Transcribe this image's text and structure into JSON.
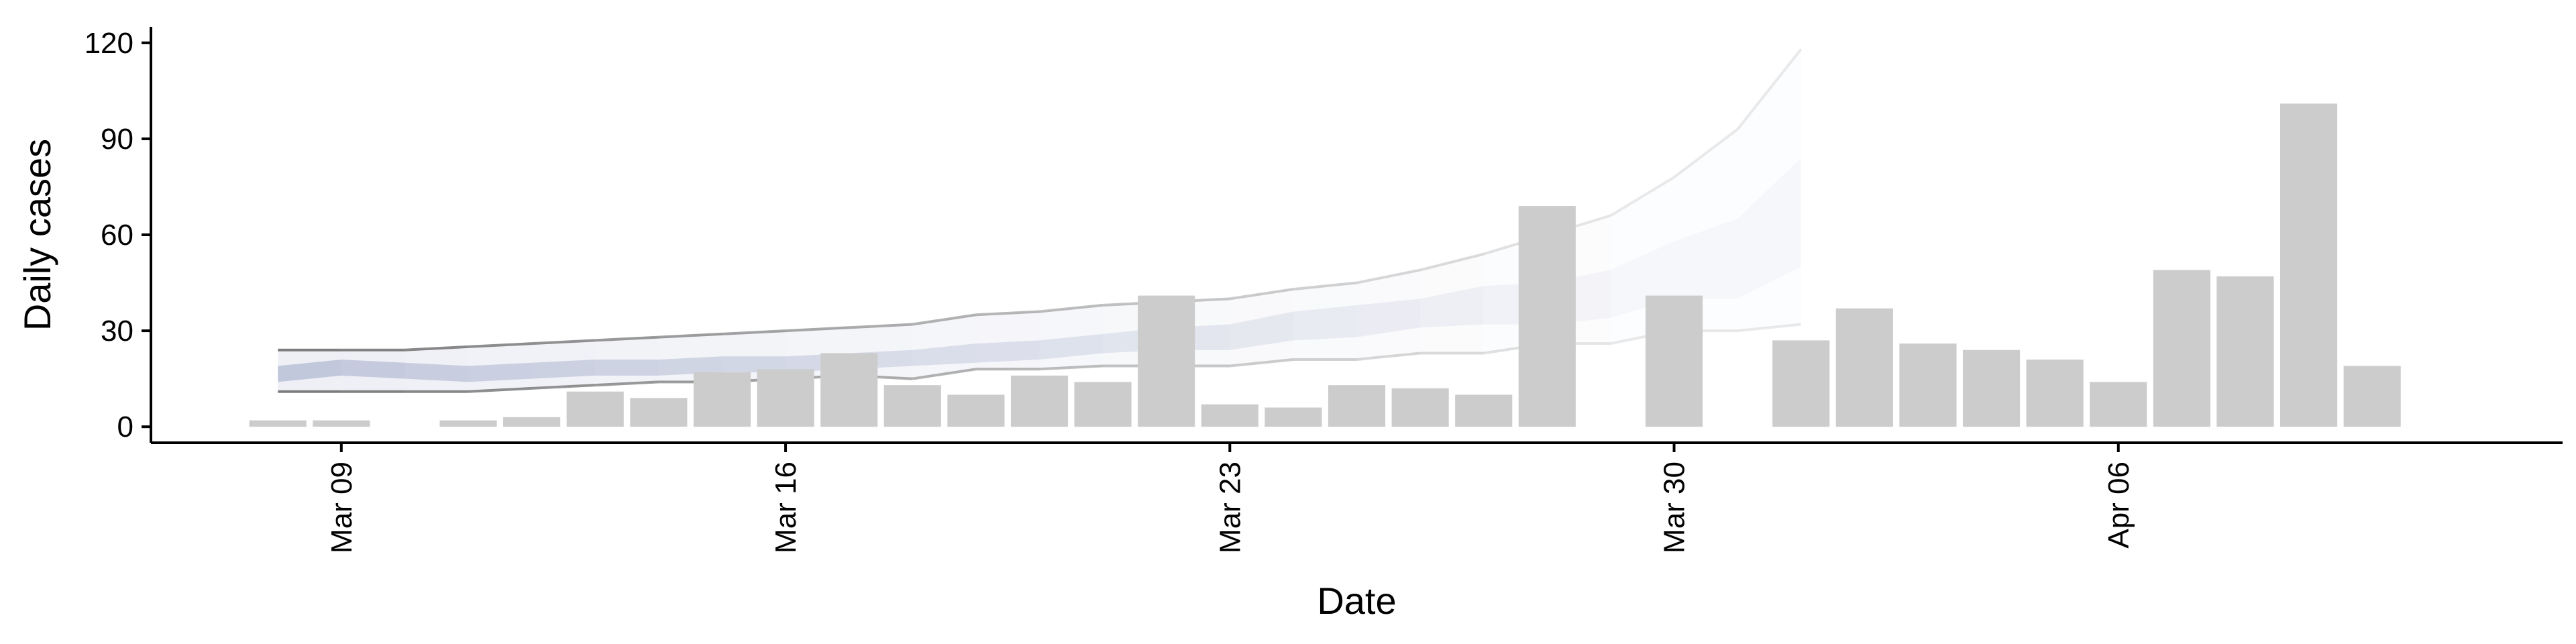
{
  "chart_data": {
    "type": "bar",
    "title": "",
    "xlabel": "Date",
    "ylabel": "Daily cases",
    "ylim": [
      -5,
      125
    ],
    "y_ticks": [
      0,
      30,
      60,
      90,
      120
    ],
    "x_ticks": [
      {
        "date": "2020-03-09",
        "label": "Mar 09"
      },
      {
        "date": "2020-03-16",
        "label": "Mar 16"
      },
      {
        "date": "2020-03-23",
        "label": "Mar 23"
      },
      {
        "date": "2020-03-30",
        "label": "Mar 30"
      },
      {
        "date": "2020-04-06",
        "label": "Apr 06"
      }
    ],
    "xlim": [
      "2020-03-06",
      "2020-04-13"
    ],
    "grid": false,
    "legend": "none",
    "bar_color": "#cccccc",
    "projection_color": "#5e6ea3",
    "projection_line_color": "#555555",
    "bars": {
      "dates": [
        "2020-03-08",
        "2020-03-09",
        "2020-03-10",
        "2020-03-11",
        "2020-03-12",
        "2020-03-13",
        "2020-03-14",
        "2020-03-15",
        "2020-03-16",
        "2020-03-17",
        "2020-03-18",
        "2020-03-19",
        "2020-03-20",
        "2020-03-21",
        "2020-03-22",
        "2020-03-23",
        "2020-03-24",
        "2020-03-25",
        "2020-03-26",
        "2020-03-27",
        "2020-03-28",
        "2020-03-29",
        "2020-03-30",
        "2020-03-31",
        "2020-04-01",
        "2020-04-02",
        "2020-04-03",
        "2020-04-04",
        "2020-04-05",
        "2020-04-06",
        "2020-04-07",
        "2020-04-08",
        "2020-04-09",
        "2020-04-10",
        "2020-04-11"
      ],
      "values": [
        2,
        2,
        0,
        2,
        3,
        11,
        9,
        17,
        18,
        23,
        13,
        10,
        16,
        14,
        41,
        7,
        6,
        13,
        12,
        10,
        69,
        0,
        41,
        0,
        27,
        37,
        26,
        24,
        21,
        14,
        49,
        47,
        101,
        19,
        0
      ]
    },
    "projection": {
      "dates": [
        "2020-03-08",
        "2020-03-09",
        "2020-03-10",
        "2020-03-11",
        "2020-03-12",
        "2020-03-13",
        "2020-03-14",
        "2020-03-15",
        "2020-03-16",
        "2020-03-17",
        "2020-03-18",
        "2020-03-19",
        "2020-03-20",
        "2020-03-21",
        "2020-03-22",
        "2020-03-23",
        "2020-03-24",
        "2020-03-25",
        "2020-03-26",
        "2020-03-27",
        "2020-03-28",
        "2020-03-29",
        "2020-03-30",
        "2020-03-31",
        "2020-04-01"
      ],
      "upper": [
        24,
        24,
        24,
        25,
        26,
        27,
        28,
        29,
        30,
        31,
        32,
        35,
        36,
        38,
        39,
        40,
        43,
        45,
        49,
        54,
        60,
        66,
        78,
        93,
        118
      ],
      "inner_upper": [
        19,
        21,
        20,
        19,
        20,
        21,
        21,
        22,
        22,
        23,
        24,
        26,
        27,
        29,
        31,
        32,
        36,
        38,
        40,
        44,
        45,
        49,
        58,
        65,
        84
      ],
      "inner_lower": [
        14,
        16,
        15,
        14,
        15,
        16,
        16,
        17,
        17,
        18,
        19,
        20,
        21,
        23,
        24,
        24,
        27,
        28,
        31,
        32,
        32,
        34,
        40,
        40,
        50
      ],
      "lower": [
        11,
        11,
        11,
        11,
        12,
        13,
        14,
        14,
        15,
        16,
        15,
        18,
        18,
        19,
        19,
        19,
        21,
        21,
        23,
        23,
        26,
        26,
        30,
        30,
        32
      ]
    }
  }
}
